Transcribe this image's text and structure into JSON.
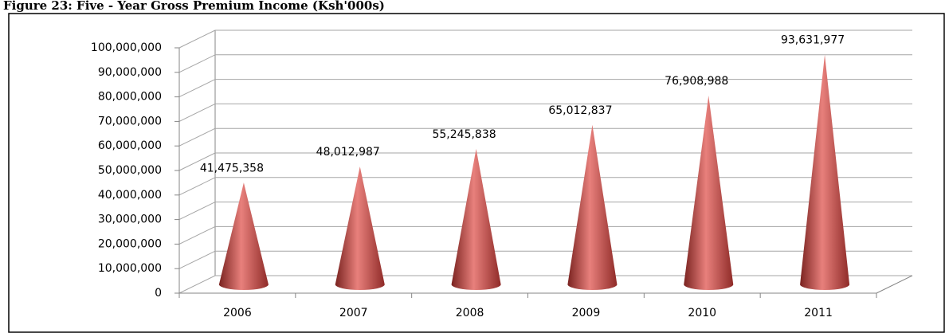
{
  "chart_data": {
    "type": "cone",
    "title": "Figure 23: Five - Year Gross Premium Income (Ksh'000s)",
    "categories": [
      "2006",
      "2007",
      "2008",
      "2009",
      "2010",
      "2011"
    ],
    "values": [
      41475358,
      48012987,
      55245838,
      65012837,
      76908988,
      93631977
    ],
    "value_labels": [
      "41,475,358",
      "48,012,987",
      "55,245,838",
      "65,012,837",
      "76,908,988",
      "93,631,977"
    ],
    "color": "#c0504d",
    "ylim": [
      0,
      100000000
    ],
    "yticks": [
      0,
      {
        "value": 10000000,
        "label": "10,000,000"
      },
      {
        "value": 20000000,
        "label": "20,000,000"
      },
      {
        "value": 30000000,
        "label": "30,000,000"
      },
      {
        "value": 40000000,
        "label": "40,000,000"
      },
      {
        "value": 50000000,
        "label": "50,000,000"
      },
      {
        "value": 60000000,
        "label": "60,000,000"
      },
      {
        "value": 70000000,
        "label": "70,000,000"
      },
      {
        "value": 80000000,
        "label": "80,000,000"
      },
      {
        "value": 90000000,
        "label": "90,000,000"
      },
      {
        "value": 100000000,
        "label": "100,000,000"
      }
    ],
    "grid": true
  }
}
